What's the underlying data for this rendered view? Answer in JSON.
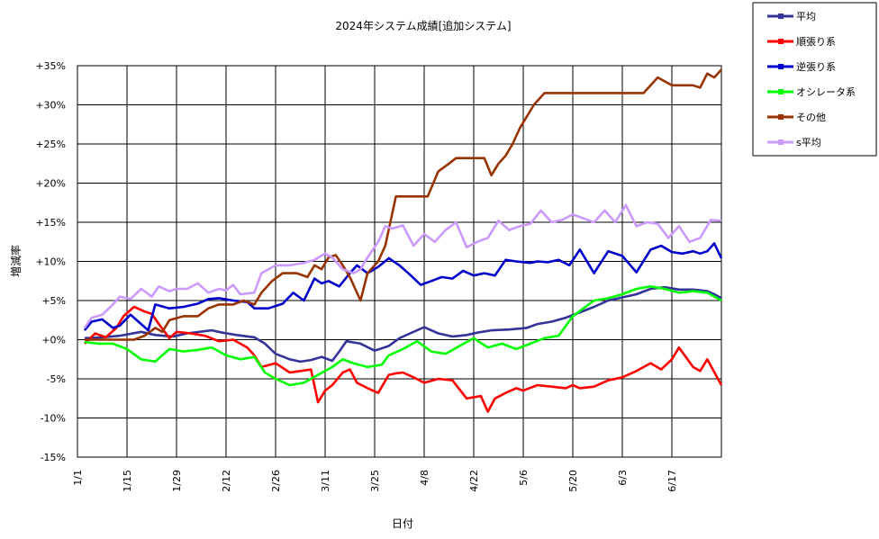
{
  "chart_data": {
    "type": "line",
    "title": "2024年システム成績[追加システム]",
    "xlabel": "日付",
    "ylabel": "増減率",
    "ylim": [
      -15,
      35
    ],
    "y_ticks": [
      "+35%",
      "+30%",
      "+25%",
      "+20%",
      "+15%",
      "+10%",
      "+5%",
      "+0%",
      "-5%",
      "-10%",
      "-15%"
    ],
    "x_ticks": [
      "1/1",
      "1/15",
      "1/29",
      "2/12",
      "2/26",
      "3/11",
      "3/25",
      "4/8",
      "4/22",
      "5/6",
      "5/20",
      "6/3",
      "6/17"
    ],
    "x_range_days": [
      0,
      182
    ],
    "grid": true,
    "legend_position": "top-right",
    "series": [
      {
        "name": "平均",
        "color": "#333399",
        "x": [
          2,
          7,
          12,
          18,
          22,
          27,
          31,
          38,
          41,
          45,
          50,
          53,
          56,
          60,
          63,
          66,
          69,
          72,
          74,
          76,
          80,
          84,
          88,
          91,
          94,
          98,
          102,
          106,
          110,
          113,
          117,
          122,
          127,
          130,
          134,
          138,
          142,
          146,
          150,
          154,
          158,
          162,
          166,
          170,
          174,
          178,
          180,
          182
        ],
        "values": [
          0.2,
          0.3,
          0.5,
          1.0,
          0.6,
          0.4,
          0.8,
          1.2,
          0.9,
          0.6,
          0.3,
          -0.5,
          -1.8,
          -2.5,
          -2.8,
          -2.6,
          -2.2,
          -2.7,
          -1.5,
          -0.2,
          -0.5,
          -1.4,
          -0.8,
          0.2,
          0.8,
          1.6,
          0.8,
          0.4,
          0.6,
          0.9,
          1.2,
          1.3,
          1.5,
          2.0,
          2.3,
          2.8,
          3.5,
          4.2,
          5.0,
          5.4,
          5.8,
          6.5,
          6.7,
          6.4,
          6.4,
          6.2,
          5.8,
          5.3
        ]
      },
      {
        "name": "順張り系",
        "color": "#ff0000",
        "x": [
          2,
          5,
          8,
          11,
          13,
          16,
          19,
          21,
          23,
          26,
          28,
          32,
          36,
          40,
          44,
          48,
          50,
          52,
          56,
          60,
          63,
          66,
          68,
          70,
          72,
          75,
          77,
          79,
          82,
          85,
          88,
          90,
          92,
          95,
          98,
          102,
          106,
          110,
          114,
          116,
          118,
          121,
          124,
          126,
          130,
          134,
          138,
          140,
          142,
          146,
          150,
          154,
          158,
          162,
          165,
          168,
          170,
          174,
          176,
          178,
          182
        ],
        "values": [
          -0.5,
          0.8,
          0.3,
          1.5,
          3.0,
          4.2,
          3.6,
          3.3,
          2.0,
          0.2,
          1.0,
          0.8,
          0.5,
          -0.2,
          0.0,
          -1.0,
          -2.0,
          -3.5,
          -3.0,
          -4.2,
          -4.0,
          -3.8,
          -8.0,
          -6.5,
          -5.8,
          -4.2,
          -3.8,
          -5.5,
          -6.2,
          -6.8,
          -4.5,
          -4.3,
          -4.2,
          -4.8,
          -5.5,
          -5.0,
          -5.2,
          -7.5,
          -7.2,
          -9.2,
          -7.5,
          -6.8,
          -6.2,
          -6.5,
          -5.8,
          -6.0,
          -6.2,
          -5.8,
          -6.2,
          -6.0,
          -5.2,
          -4.8,
          -4.0,
          -3.0,
          -3.8,
          -2.5,
          -1.0,
          -3.5,
          -4.0,
          -2.5,
          -5.8
        ]
      },
      {
        "name": "逆張り系",
        "color": "#0000cc",
        "x": [
          2,
          4,
          7,
          10,
          12,
          15,
          18,
          20,
          22,
          26,
          30,
          34,
          37,
          40,
          44,
          48,
          50,
          54,
          58,
          61,
          64,
          67,
          69,
          71,
          74,
          77,
          79,
          82,
          85,
          88,
          91,
          94,
          97,
          100,
          103,
          106,
          109,
          112,
          115,
          118,
          121,
          124,
          128,
          130,
          133,
          136,
          139,
          142,
          146,
          150,
          154,
          158,
          162,
          165,
          168,
          171,
          174,
          176,
          178,
          180,
          182
        ],
        "values": [
          1.2,
          2.3,
          2.6,
          1.5,
          1.8,
          3.2,
          2.0,
          1.2,
          4.5,
          4.0,
          4.2,
          4.6,
          5.2,
          5.3,
          5.0,
          4.8,
          4.0,
          4.0,
          4.6,
          6.0,
          5.0,
          7.8,
          7.2,
          7.5,
          6.8,
          8.5,
          9.5,
          8.5,
          9.3,
          10.4,
          9.5,
          8.3,
          7.0,
          7.5,
          8.0,
          7.8,
          8.8,
          8.2,
          8.5,
          8.2,
          10.2,
          10.0,
          9.8,
          10.0,
          9.9,
          10.2,
          9.5,
          11.5,
          8.5,
          11.3,
          10.7,
          8.6,
          11.5,
          12.0,
          11.2,
          11.0,
          11.3,
          11.0,
          11.3,
          12.3,
          10.4
        ]
      },
      {
        "name": "オシレータ系",
        "color": "#00ff00",
        "x": [
          2,
          6,
          10,
          14,
          18,
          22,
          26,
          30,
          34,
          38,
          42,
          46,
          50,
          53,
          56,
          60,
          64,
          68,
          72,
          75,
          78,
          82,
          86,
          88,
          92,
          96,
          100,
          104,
          108,
          112,
          116,
          120,
          124,
          128,
          132,
          136,
          140,
          143,
          146,
          150,
          154,
          158,
          162,
          166,
          170,
          174,
          178,
          182
        ],
        "values": [
          -0.3,
          -0.5,
          -0.5,
          -1.2,
          -2.5,
          -2.8,
          -1.2,
          -1.5,
          -1.3,
          -1.0,
          -2.0,
          -2.5,
          -2.2,
          -4.2,
          -5.0,
          -5.8,
          -5.5,
          -4.5,
          -3.5,
          -2.5,
          -3.0,
          -3.5,
          -3.2,
          -2.0,
          -1.2,
          -0.2,
          -1.5,
          -1.8,
          -0.8,
          0.2,
          -1.0,
          -0.5,
          -1.2,
          -0.5,
          0.2,
          0.5,
          3.0,
          4.0,
          5.0,
          5.3,
          5.8,
          6.5,
          6.8,
          6.5,
          6.0,
          6.2,
          6.0,
          5.0
        ]
      },
      {
        "name": "その他",
        "color": "#993300",
        "x": [
          2,
          8,
          12,
          16,
          19,
          22,
          24,
          26,
          30,
          34,
          37,
          40,
          44,
          47,
          50,
          52,
          55,
          58,
          62,
          65,
          67,
          69,
          71,
          73,
          75,
          77,
          80,
          82,
          85,
          87,
          90,
          92,
          95,
          97,
          99,
          102,
          105,
          107,
          110,
          113,
          115,
          117,
          119,
          121,
          123,
          125,
          127,
          129,
          132,
          136,
          140,
          144,
          148,
          152,
          156,
          160,
          164,
          168,
          172,
          174,
          176,
          178,
          180,
          182
        ],
        "values": [
          0.0,
          0.0,
          0.0,
          0.0,
          0.5,
          1.5,
          1.0,
          2.5,
          3.0,
          3.0,
          4.0,
          4.5,
          4.5,
          5.0,
          4.5,
          6.0,
          7.5,
          8.5,
          8.5,
          8.0,
          9.5,
          9.0,
          10.5,
          10.8,
          9.5,
          8.0,
          5.0,
          8.5,
          10.0,
          12.0,
          18.3,
          18.3,
          18.3,
          18.3,
          18.3,
          21.5,
          22.5,
          23.2,
          23.2,
          23.2,
          23.2,
          21.0,
          22.5,
          23.5,
          25.0,
          27.0,
          28.5,
          30.0,
          31.5,
          31.5,
          31.5,
          31.5,
          31.5,
          31.5,
          31.5,
          31.5,
          33.5,
          32.5,
          32.5,
          32.5,
          32.2,
          34.0,
          33.5,
          34.5
        ]
      },
      {
        "name": "s平均",
        "color": "#cc99ff",
        "x": [
          2,
          4,
          7,
          10,
          12,
          15,
          18,
          21,
          23,
          26,
          28,
          31,
          34,
          37,
          40,
          42,
          44,
          46,
          50,
          52,
          56,
          60,
          64,
          67,
          70,
          72,
          75,
          78,
          80,
          82,
          85,
          87,
          89,
          92,
          95,
          98,
          101,
          104,
          107,
          110,
          113,
          116,
          119,
          122,
          125,
          128,
          131,
          134,
          137,
          140,
          143,
          146,
          149,
          152,
          155,
          158,
          161,
          164,
          167,
          170,
          173,
          176,
          179,
          182
        ],
        "values": [
          1.5,
          2.8,
          3.2,
          4.5,
          5.5,
          5.2,
          6.5,
          5.5,
          6.8,
          6.2,
          6.5,
          6.5,
          7.2,
          6.0,
          6.5,
          6.3,
          7.0,
          5.8,
          6.0,
          8.5,
          9.5,
          9.5,
          9.8,
          10.2,
          11.0,
          10.5,
          9.0,
          8.5,
          9.0,
          10.5,
          12.5,
          14.5,
          14.2,
          14.6,
          12.0,
          13.5,
          12.5,
          14.0,
          15.0,
          11.8,
          12.5,
          13.0,
          15.2,
          14.0,
          14.5,
          14.8,
          16.5,
          15.0,
          15.3,
          16.0,
          15.5,
          15.0,
          16.5,
          15.0,
          17.2,
          14.5,
          15.0,
          14.8,
          13.0,
          14.5,
          12.5,
          13.0,
          15.3,
          15.2
        ]
      }
    ]
  }
}
